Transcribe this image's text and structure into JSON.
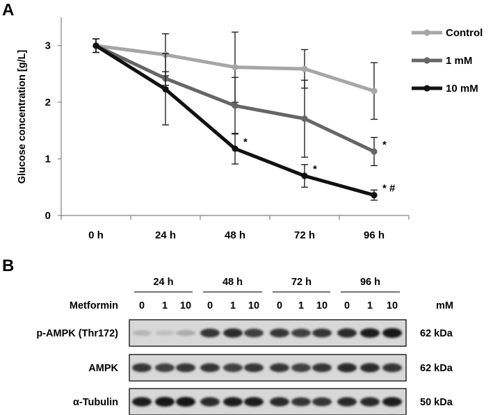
{
  "panel_a_label": "A",
  "panel_b_label": "B",
  "chart_data": {
    "type": "line",
    "title": "",
    "xlabel": "",
    "ylabel": "Glucose concentration [g/L]",
    "categories": [
      "0 h",
      "24 h",
      "48 h",
      "72 h",
      "96 h"
    ],
    "ylim": [
      0,
      3.5
    ],
    "yticks": [
      0,
      1,
      2,
      3
    ],
    "grid": false,
    "legend_position": "top-right",
    "series": [
      {
        "name": "Control",
        "color": "#a6a6a6",
        "values": [
          3.0,
          2.84,
          2.62,
          2.59,
          2.2
        ],
        "errors": [
          0.12,
          0.37,
          0.62,
          0.34,
          0.5
        ],
        "annotations": [
          "",
          "",
          "",
          "",
          ""
        ]
      },
      {
        "name": "1 mM",
        "color": "#666666",
        "values": [
          3.0,
          2.42,
          1.94,
          1.71,
          1.13
        ],
        "errors": [
          0.12,
          0.12,
          0.5,
          0.68,
          0.25
        ],
        "annotations": [
          "",
          "",
          "",
          "",
          "*"
        ]
      },
      {
        "name": "10 mM",
        "color": "#111111",
        "values": [
          3.0,
          2.23,
          1.18,
          0.7,
          0.36
        ],
        "errors": [
          0.12,
          0.63,
          0.27,
          0.2,
          0.09
        ],
        "annotations": [
          "",
          "",
          "*",
          "*",
          "* #"
        ]
      }
    ]
  },
  "blot": {
    "time_groups": [
      "24 h",
      "48 h",
      "72 h",
      "96 h"
    ],
    "treatment_label": "Metformin",
    "doses": [
      "0",
      "1",
      "10",
      "0",
      "1",
      "10",
      "0",
      "1",
      "10",
      "0",
      "1",
      "10"
    ],
    "unit": "mM",
    "rows": [
      {
        "label": "p-AMPK (Thr172)",
        "size": "62 kDa",
        "intensities": [
          0.25,
          0.2,
          0.3,
          0.85,
          0.9,
          0.8,
          0.85,
          0.8,
          0.85,
          0.9,
          0.95,
          1.0
        ]
      },
      {
        "label": "AMPK",
        "size": "62 kDa",
        "intensities": [
          0.85,
          0.8,
          0.85,
          0.85,
          0.8,
          0.85,
          0.85,
          0.8,
          0.85,
          0.9,
          0.9,
          0.85
        ]
      },
      {
        "label": "α-Tubulin",
        "size": "50 kDa",
        "intensities": [
          0.95,
          1.0,
          1.0,
          0.9,
          0.95,
          0.95,
          0.9,
          0.85,
          0.85,
          0.9,
          0.9,
          0.95
        ]
      }
    ]
  }
}
